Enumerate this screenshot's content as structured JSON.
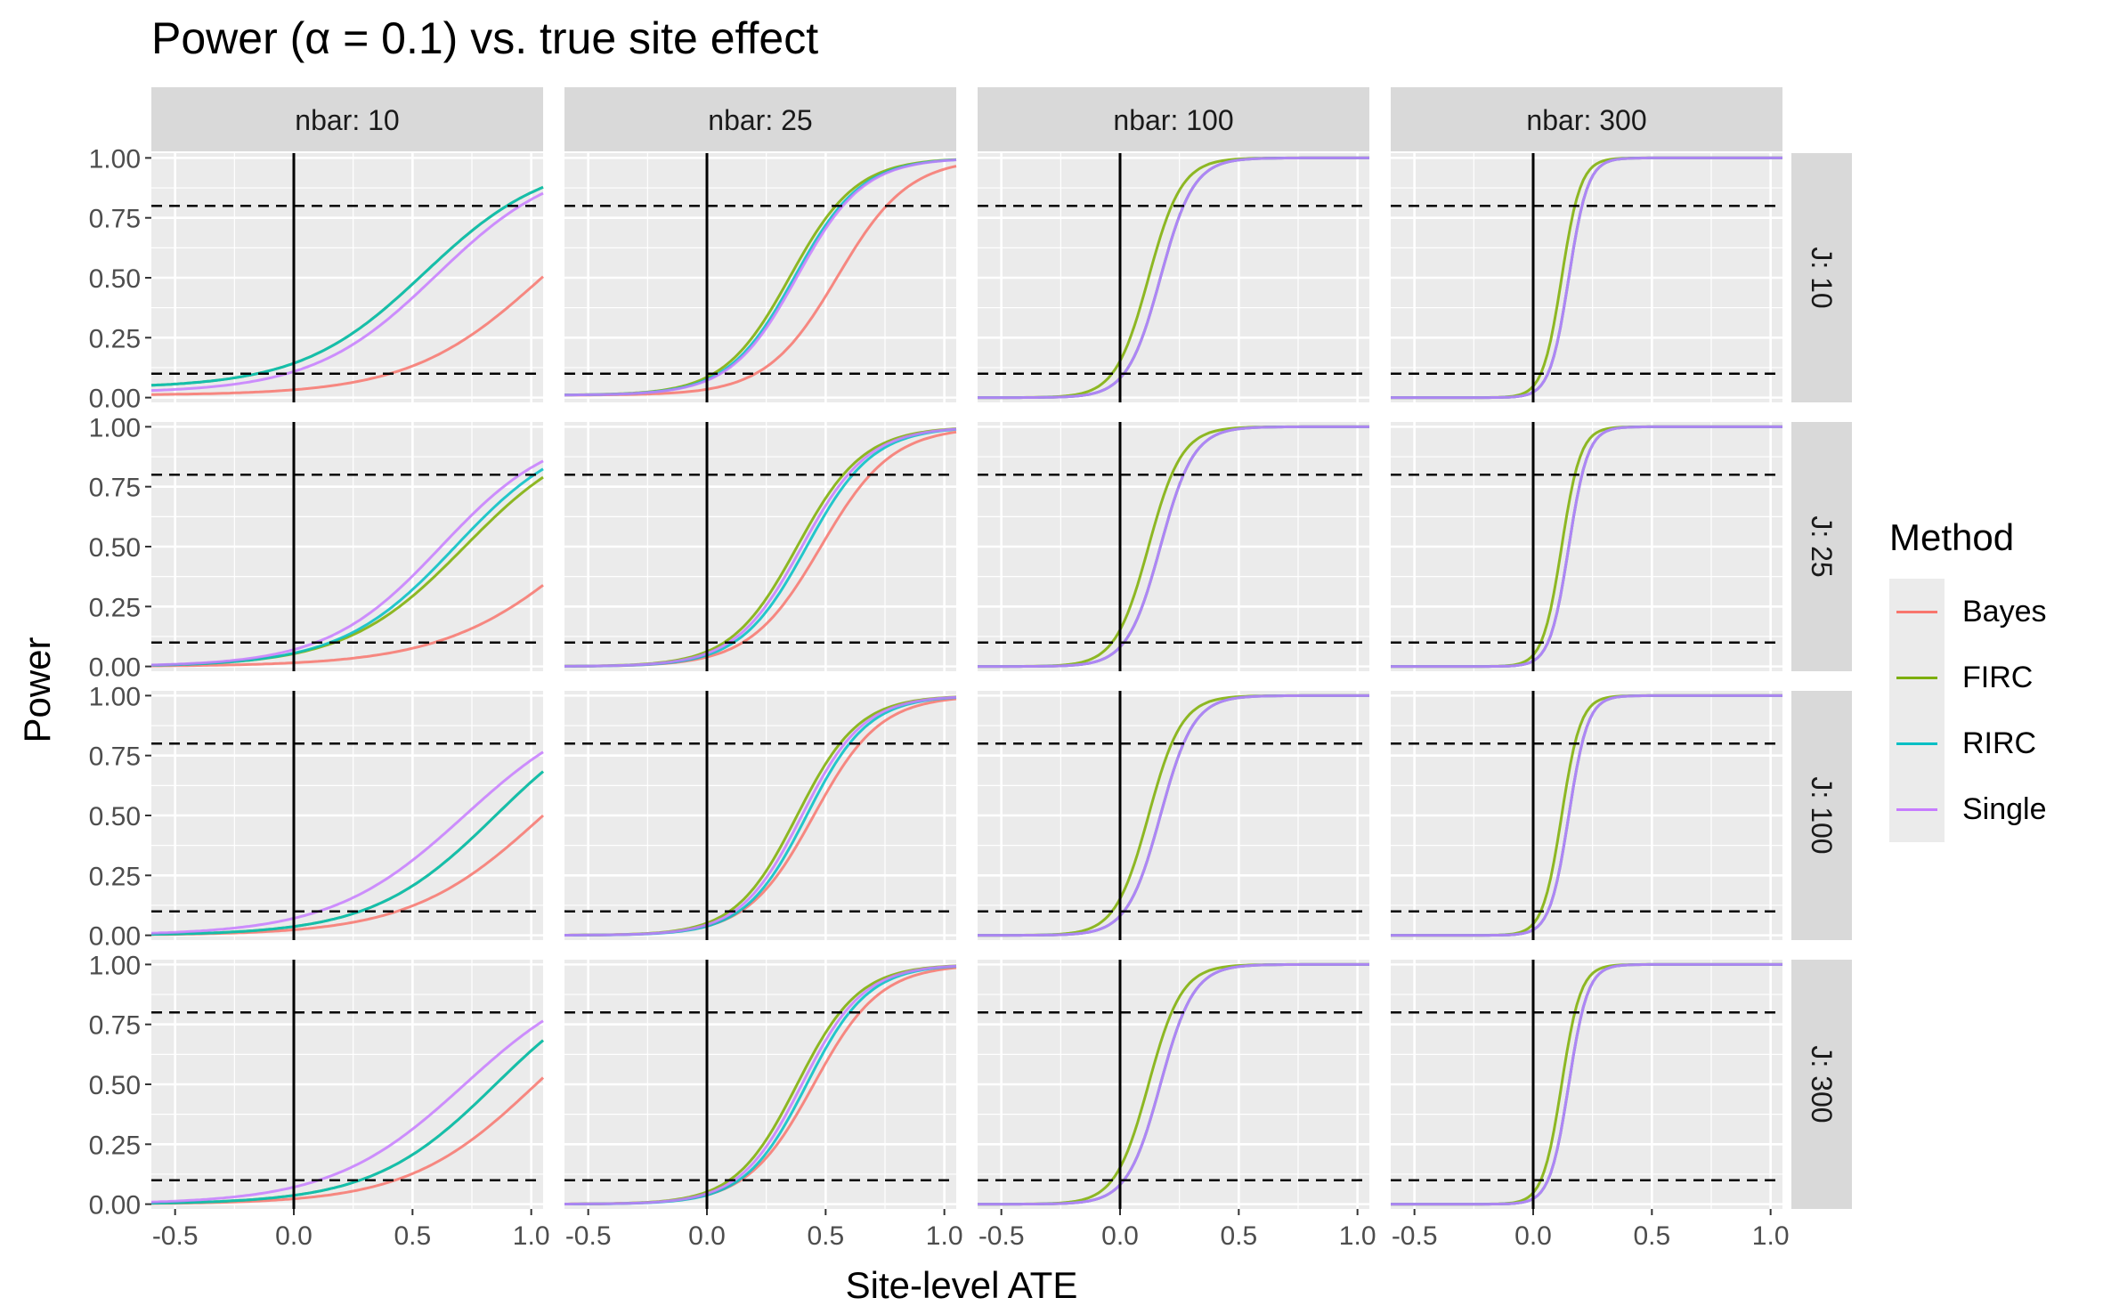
{
  "chart_data": {
    "type": "line",
    "title": "Power (α = 0.1) vs. true site effect",
    "xlabel": "Site-level ATE",
    "ylabel": "Power",
    "xlim": [
      -0.6,
      1.05
    ],
    "ylim": [
      -0.02,
      1.02
    ],
    "x_ticks": [
      "-0.5",
      "0.0",
      "0.5",
      "1.0"
    ],
    "y_ticks": [
      "0.00",
      "0.25",
      "0.50",
      "0.75",
      "1.00"
    ],
    "hlines": [
      0.1,
      0.8
    ],
    "vline": 0,
    "facet_cols": [
      "nbar: 10",
      "nbar: 25",
      "nbar: 100",
      "nbar: 300"
    ],
    "facet_rows": [
      "J: 10",
      "J: 25",
      "J: 100",
      "J: 300"
    ],
    "legend_title": "Method",
    "legend_position": "right",
    "grid": true,
    "series": [
      {
        "name": "Bayes",
        "color": "#f8766d"
      },
      {
        "name": "FIRC",
        "color": "#7cae00"
      },
      {
        "name": "RIRC",
        "color": "#00bfc4"
      },
      {
        "name": "Single",
        "color": "#c77cff"
      }
    ],
    "curve_shape": "logistic power curve: power(x) = floor + (1 - floor) / (1 + exp(-(x - midpoint) / scale)); panels[row][col][series] = [floor, midpoint, scale]",
    "panels": [
      [
        [
          [
            0.01,
            1.05,
            0.28
          ],
          [
            0.04,
            0.55,
            0.26
          ],
          [
            0.04,
            0.55,
            0.26
          ],
          [
            0.02,
            0.6,
            0.26
          ]
        ],
        [
          [
            0.01,
            0.55,
            0.15
          ],
          [
            0.01,
            0.35,
            0.14
          ],
          [
            0.01,
            0.37,
            0.14
          ],
          [
            0.01,
            0.38,
            0.14
          ]
        ],
        [
          [
            0.0,
            0.17,
            0.07
          ],
          [
            0.0,
            0.12,
            0.07
          ],
          [
            0.0,
            0.17,
            0.07
          ],
          [
            0.0,
            0.17,
            0.07
          ]
        ],
        [
          [
            0.0,
            0.15,
            0.04
          ],
          [
            0.0,
            0.12,
            0.04
          ],
          [
            0.0,
            0.15,
            0.04
          ],
          [
            0.0,
            0.15,
            0.04
          ]
        ]
      ],
      [
        [
          [
            0.0,
            1.25,
            0.3
          ],
          [
            0.0,
            0.72,
            0.25
          ],
          [
            0.0,
            0.68,
            0.24
          ],
          [
            0.0,
            0.62,
            0.24
          ]
        ],
        [
          [
            0.0,
            0.48,
            0.15
          ],
          [
            0.0,
            0.38,
            0.14
          ],
          [
            0.0,
            0.42,
            0.14
          ],
          [
            0.0,
            0.4,
            0.14
          ]
        ],
        [
          [
            0.0,
            0.17,
            0.07
          ],
          [
            0.0,
            0.12,
            0.07
          ],
          [
            0.0,
            0.17,
            0.07
          ],
          [
            0.0,
            0.17,
            0.07
          ]
        ],
        [
          [
            0.0,
            0.15,
            0.04
          ],
          [
            0.0,
            0.12,
            0.04
          ],
          [
            0.0,
            0.15,
            0.04
          ],
          [
            0.0,
            0.15,
            0.04
          ]
        ]
      ],
      [
        [
          [
            0.0,
            1.05,
            0.28
          ],
          [
            0.0,
            0.85,
            0.26
          ],
          [
            0.0,
            0.85,
            0.26
          ],
          [
            0.0,
            0.72,
            0.28
          ]
        ],
        [
          [
            0.0,
            0.45,
            0.14
          ],
          [
            0.0,
            0.38,
            0.13
          ],
          [
            0.0,
            0.42,
            0.13
          ],
          [
            0.0,
            0.4,
            0.13
          ]
        ],
        [
          [
            0.0,
            0.17,
            0.07
          ],
          [
            0.0,
            0.12,
            0.07
          ],
          [
            0.0,
            0.17,
            0.07
          ],
          [
            0.0,
            0.17,
            0.07
          ]
        ],
        [
          [
            0.0,
            0.15,
            0.04
          ],
          [
            0.0,
            0.12,
            0.04
          ],
          [
            0.0,
            0.15,
            0.04
          ],
          [
            0.0,
            0.15,
            0.04
          ]
        ]
      ],
      [
        [
          [
            0.0,
            1.02,
            0.27
          ],
          [
            0.0,
            0.85,
            0.26
          ],
          [
            0.0,
            0.85,
            0.26
          ],
          [
            0.0,
            0.72,
            0.28
          ]
        ],
        [
          [
            0.0,
            0.45,
            0.14
          ],
          [
            0.0,
            0.38,
            0.13
          ],
          [
            0.0,
            0.42,
            0.13
          ],
          [
            0.0,
            0.4,
            0.13
          ]
        ],
        [
          [
            0.0,
            0.17,
            0.07
          ],
          [
            0.0,
            0.12,
            0.07
          ],
          [
            0.0,
            0.17,
            0.07
          ],
          [
            0.0,
            0.17,
            0.07
          ]
        ],
        [
          [
            0.0,
            0.15,
            0.04
          ],
          [
            0.0,
            0.12,
            0.04
          ],
          [
            0.0,
            0.15,
            0.04
          ],
          [
            0.0,
            0.15,
            0.04
          ]
        ]
      ]
    ]
  }
}
